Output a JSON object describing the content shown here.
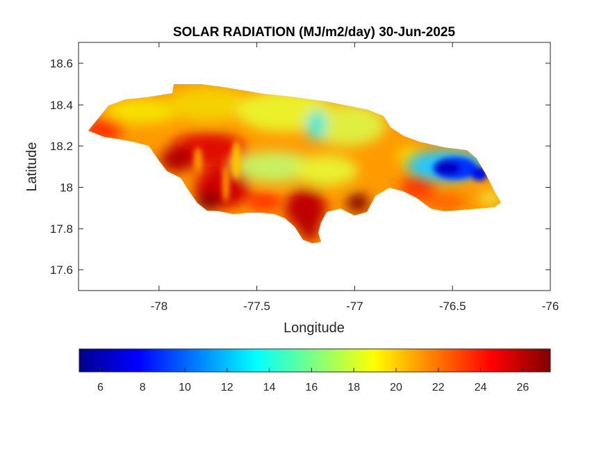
{
  "title": "SOLAR RADIATION (MJ/m2/day) 30-Jun-2025",
  "xlabel": "Longitude",
  "ylabel": "Latitude",
  "chart_data": {
    "type": "heatmap",
    "title": "SOLAR RADIATION (MJ/m2/day) 30-Jun-2025",
    "xlabel": "Longitude",
    "ylabel": "Latitude",
    "xlim": [
      -78.4,
      -76
    ],
    "ylim": [
      17.5,
      18.7
    ],
    "xticks": [
      -78,
      -77.5,
      -77,
      -76.5,
      -76
    ],
    "yticks": [
      17.6,
      17.8,
      18,
      18.2,
      18.4,
      18.6
    ],
    "xtick_labels": [
      "-78",
      "-77.5",
      "-77",
      "-76.5",
      "-76"
    ],
    "ytick_labels": [
      "17.6",
      "17.8",
      "18",
      "18.2",
      "18.4",
      "18.6"
    ],
    "colormap": "jet",
    "colorbar": {
      "range": [
        5,
        27.3
      ],
      "ticks": [
        6,
        8,
        10,
        12,
        14,
        16,
        18,
        20,
        22,
        24,
        26
      ],
      "tick_labels": [
        "6",
        "8",
        "10",
        "12",
        "14",
        "16",
        "18",
        "20",
        "22",
        "24",
        "26"
      ],
      "placement": "bottom"
    },
    "grid": false
  }
}
